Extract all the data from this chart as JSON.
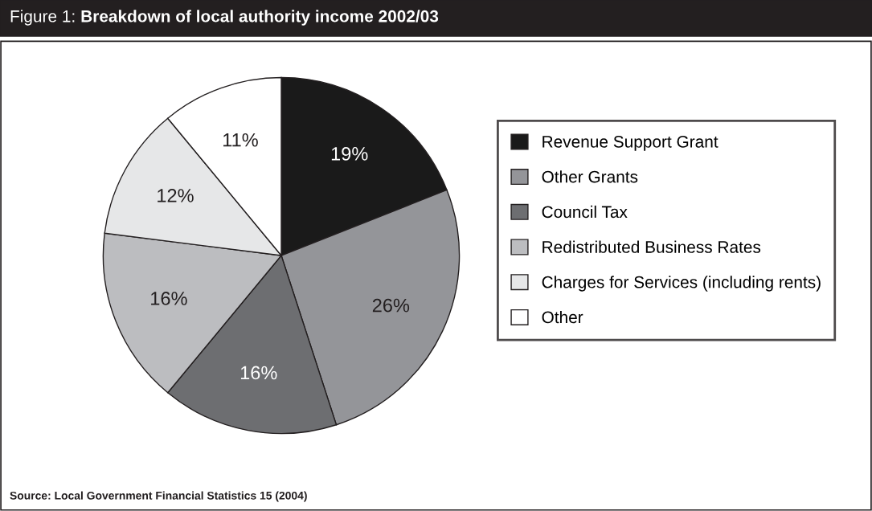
{
  "chart_data": {
    "type": "pie",
    "title": "Figure 1: Breakdown of local authority income 2002/03",
    "categories": [
      "Revenue Support Grant",
      "Other Grants",
      "Council Tax",
      "Redistributed Business Rates",
      "Charges for Services (including rents)",
      "Other"
    ],
    "values": [
      19,
      26,
      16,
      16,
      12,
      11
    ],
    "value_labels": [
      "19%",
      "26%",
      "16%",
      "16%",
      "12%",
      "11%"
    ],
    "colors": [
      "#1a1a1a",
      "#949599",
      "#6d6e71",
      "#bcbdc0",
      "#e6e7e8",
      "#ffffff"
    ],
    "legend": "right",
    "annotations": [
      "Source: Local Government Financial Statistics 15 (2004)"
    ]
  }
}
